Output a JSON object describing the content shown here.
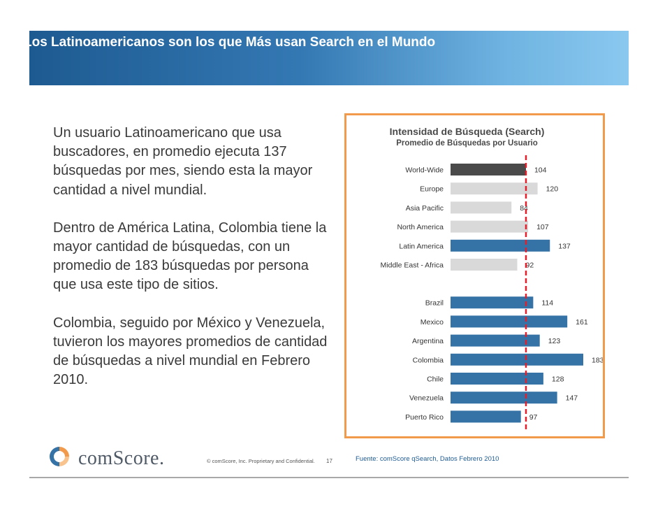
{
  "slide": {
    "title": "Los Latinoamericanos son los que Más usan Search en el Mundo"
  },
  "body": {
    "paragraphs": [
      "Un usuario Latinoamericano que usa buscadores, en promedio ejecuta 137 búsquedas por mes, siendo esta la mayor cantidad a nivel mundial.",
      "Dentro de América Latina, Colombia tiene la mayor cantidad de búsquedas, con un promedio de 183 búsquedas por persona que usa este tipo de sitios.",
      "Colombia, seguido por México y Venezuela, tuvieron los mayores promedios de cantidad de búsquedas a nivel mundial en Febrero 2010."
    ]
  },
  "chart_data": {
    "type": "bar",
    "orientation": "horizontal",
    "title": "Intensidad de Búsqueda (Search)",
    "subtitle": "Promedio de Búsquedas por Usuario",
    "categories": [
      "World-Wide",
      "Europe",
      "Asia Pacific",
      "North America",
      "Latin America",
      "Middle East - Africa",
      "Brazil",
      "Mexico",
      "Argentina",
      "Colombia",
      "Chile",
      "Venezuela",
      "Puerto Rico"
    ],
    "values": [
      104,
      120,
      84,
      107,
      137,
      92,
      114,
      161,
      123,
      183,
      128,
      147,
      97
    ],
    "groups": [
      "region",
      "region",
      "region",
      "region",
      "region",
      "region",
      "country",
      "country",
      "country",
      "country",
      "country",
      "country",
      "country"
    ],
    "reference_line": {
      "value": 104,
      "style": "dashed",
      "color": "#e2202c"
    },
    "colors": {
      "world": "#4a4a4a",
      "other_region": "#d9d9d9",
      "latam": "#3572a5"
    },
    "bar_color_keys": [
      "world",
      "other_region",
      "other_region",
      "other_region",
      "latam",
      "other_region",
      "latam",
      "latam",
      "latam",
      "latam",
      "latam",
      "latam",
      "latam"
    ],
    "xlim": [
      0,
      190
    ],
    "grid": false,
    "legend": "none"
  },
  "footer": {
    "logo": "comScore.",
    "copyright": "© comScore, Inc.  Proprietary and Confidential.",
    "page_number": "17",
    "source": "Fuente:  comScore qSearch, Datos Febrero 2010"
  },
  "colors": {
    "accent_orange": "#f19a4b",
    "brand_blue": "#1d5a91"
  }
}
